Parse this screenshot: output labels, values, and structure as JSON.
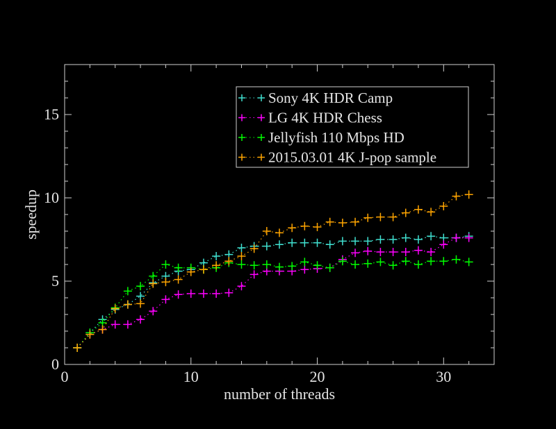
{
  "chart_data": {
    "type": "line",
    "title": "",
    "xlabel": "number of threads",
    "ylabel": "speedup",
    "xlim": [
      0,
      34
    ],
    "ylim": [
      0,
      18
    ],
    "xticks": [
      0,
      10,
      20,
      30
    ],
    "yticks": [
      0,
      5,
      10,
      15
    ],
    "grid": false,
    "legend_position": "top-right",
    "marker": "plus",
    "line_style": "dotted",
    "x": [
      1,
      2,
      3,
      4,
      5,
      6,
      7,
      8,
      9,
      10,
      11,
      12,
      13,
      14,
      15,
      16,
      17,
      18,
      19,
      20,
      21,
      22,
      23,
      24,
      25,
      26,
      27,
      28,
      29,
      30,
      31,
      32
    ],
    "series": [
      {
        "name": "Sony 4K HDR Camp",
        "color": "#40e0d0",
        "values": [
          1,
          1.9,
          2.7,
          3.3,
          3.6,
          4.1,
          4.9,
          5.3,
          5.6,
          5.7,
          6.1,
          6.5,
          6.6,
          7.0,
          7.1,
          7.1,
          7.2,
          7.3,
          7.3,
          7.3,
          7.2,
          7.4,
          7.4,
          7.4,
          7.5,
          7.5,
          7.6,
          7.5,
          7.7,
          7.6,
          7.6,
          7.7
        ]
      },
      {
        "name": "LG 4K HDR Chess",
        "color": "#ff00ff",
        "values": [
          1,
          1.8,
          2.1,
          2.4,
          2.4,
          2.7,
          3.2,
          3.9,
          4.2,
          4.25,
          4.25,
          4.25,
          4.3,
          4.7,
          5.4,
          5.6,
          5.6,
          5.6,
          5.7,
          5.75,
          5.8,
          6.3,
          6.7,
          6.8,
          6.75,
          6.75,
          6.75,
          6.85,
          6.75,
          7.2,
          7.6,
          7.6
        ]
      },
      {
        "name": "Jellyfish 110 Mbps HD",
        "color": "#00ff00",
        "values": [
          1,
          1.9,
          2.5,
          3.4,
          4.4,
          4.7,
          5.3,
          6.0,
          5.8,
          5.8,
          5.7,
          5.8,
          6.1,
          6.0,
          5.95,
          6.0,
          5.85,
          5.9,
          6.15,
          5.95,
          5.8,
          6.2,
          6.0,
          6.05,
          6.15,
          5.95,
          6.2,
          6.0,
          6.2,
          6.2,
          6.3,
          6.15
        ]
      },
      {
        "name": "2015.03.01 4K J-pop sample",
        "color": "#ffa500",
        "values": [
          1,
          1.8,
          2.1,
          3.35,
          3.6,
          3.65,
          4.85,
          4.95,
          5.1,
          5.55,
          5.7,
          5.95,
          6.2,
          6.5,
          6.95,
          8.0,
          7.9,
          8.2,
          8.3,
          8.25,
          8.55,
          8.5,
          8.55,
          8.8,
          8.85,
          8.85,
          9.1,
          9.3,
          9.15,
          9.5,
          10.1,
          10.2
        ]
      }
    ]
  }
}
